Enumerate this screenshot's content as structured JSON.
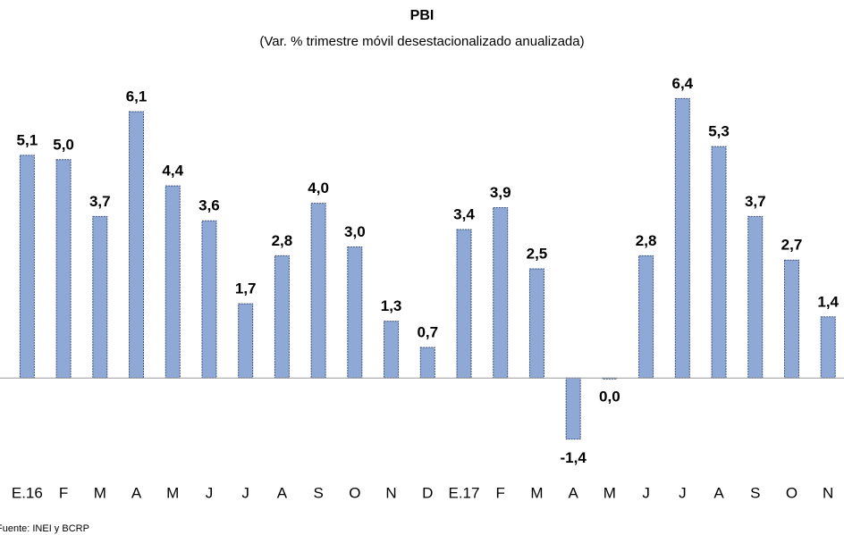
{
  "chart_data": {
    "type": "bar",
    "title": "PBI",
    "subtitle": "(Var. % trimestre móvil desestacionalizado anualizada)",
    "categories": [
      "E.16",
      "F",
      "M",
      "A",
      "M",
      "J",
      "J",
      "A",
      "S",
      "O",
      "N",
      "D",
      "E.17",
      "F",
      "M",
      "A",
      "M",
      "J",
      "J",
      "A",
      "S",
      "O",
      "N"
    ],
    "values": [
      5.1,
      5.0,
      3.7,
      6.1,
      4.4,
      3.6,
      1.7,
      2.8,
      4.0,
      3.0,
      1.3,
      0.7,
      3.4,
      3.9,
      2.5,
      -1.4,
      0.0,
      2.8,
      6.4,
      5.3,
      3.7,
      2.7,
      1.4
    ],
    "value_labels": [
      "5,1",
      "5,0",
      "3,7",
      "6,1",
      "4,4",
      "3,6",
      "1,7",
      "2,8",
      "4,0",
      "3,0",
      "1,3",
      "0,7",
      "3,4",
      "3,9",
      "2,5",
      "-1,4",
      "0,0",
      "2,8",
      "6,4",
      "5,3",
      "3,7",
      "2,7",
      "1,4"
    ],
    "color": "#8fa9d6",
    "ylim": [
      -2,
      7
    ],
    "grid": false,
    "source": "Fuente: INEI y BCRP"
  }
}
